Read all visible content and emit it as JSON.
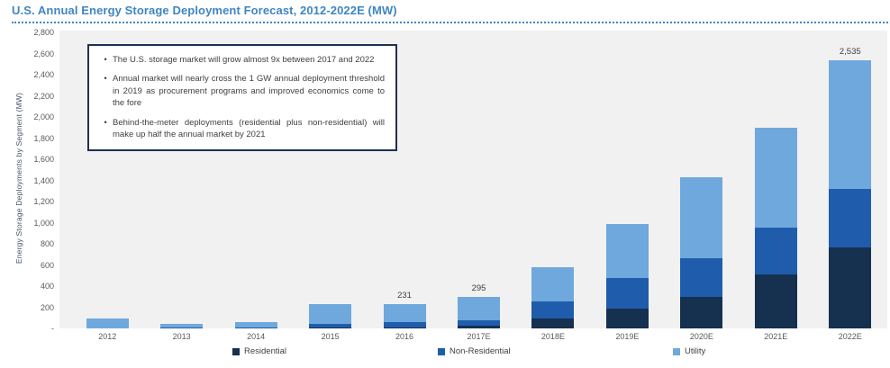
{
  "header": {
    "title": "U.S. Annual Energy Storage Deployment Forecast, 2012-2022E (MW)"
  },
  "annotation_box": {
    "bullets": [
      "The U.S. storage market will grow almost 9x between 2017 and 2022",
      "Annual market will nearly cross the 1 GW annual deployment threshold in 2019 as procurement programs and improved economics come to the fore",
      "Behind-the-meter deployments (residential plus non-residential) will make up half the annual market by 2021"
    ]
  },
  "chart_data": {
    "type": "bar",
    "stacked": true,
    "title": "U.S. Annual Energy Storage Deployment Forecast, 2012-2022E (MW)",
    "ylabel": "Energy Storage Deployments by Segment (MW)",
    "xlabel": "",
    "ylim": [
      0,
      2800
    ],
    "ytick_step": 200,
    "ytick_labels": [
      "2,800",
      "2,600",
      "2,400",
      "2,200",
      "2,000",
      "1,800",
      "1,600",
      "1,400",
      "1,200",
      "1,000",
      "800",
      "600",
      "400",
      "200",
      "-"
    ],
    "grid": false,
    "legend_position": "bottom",
    "categories": [
      "2012",
      "2013",
      "2014",
      "2015",
      "2016",
      "2017E",
      "2018E",
      "2019E",
      "2020E",
      "2021E",
      "2022E"
    ],
    "series": [
      {
        "name": "Residential",
        "color": "#16304f",
        "values": [
          0,
          0,
          0,
          5,
          8,
          24,
          90,
          190,
          300,
          510,
          765
        ]
      },
      {
        "name": "Non-Residential",
        "color": "#1f5dac",
        "values": [
          0,
          5,
          6,
          40,
          49,
          51,
          165,
          285,
          360,
          445,
          555
        ]
      },
      {
        "name": "Utility",
        "color": "#6fa8dc",
        "values": [
          90,
          39,
          56,
          181,
          174,
          220,
          320,
          510,
          770,
          940,
          1215
        ]
      }
    ],
    "totals": [
      90,
      44,
      62,
      226,
      231,
      295,
      575,
      985,
      1430,
      1895,
      2535
    ],
    "data_labels": [
      "",
      "",
      "",
      "",
      "231",
      "295",
      "",
      "",
      "",
      "",
      "2,535"
    ]
  },
  "colors": {
    "title": "#3f86c2",
    "plot_background": "#f1f1f2",
    "axis_text": "#595959",
    "data_label_text": "#404040",
    "annotation_border": "#1f3050",
    "annotation_text": "#404040"
  }
}
